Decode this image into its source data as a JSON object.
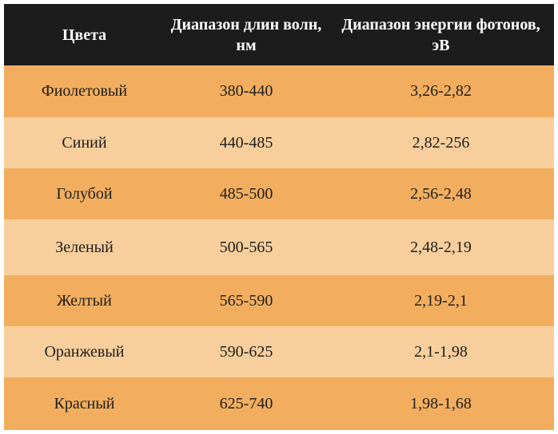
{
  "table": {
    "headers": [
      "Цвета",
      "Диапазон длин волн, нм",
      "Диапазон энергии фотонов, эВ"
    ],
    "rows": [
      [
        "Фиолетовый",
        "380-440",
        "3,26-2,82"
      ],
      [
        "Синий",
        "440-485",
        "2,82-256"
      ],
      [
        "Голубой",
        "485-500",
        "2,56-2,48"
      ],
      [
        "Зеленый",
        "500-565",
        "2,48-2,19"
      ],
      [
        "Желтый",
        "565-590",
        "2,19-2,1"
      ],
      [
        "Оранжевый",
        "590-625",
        "2,1-1,98"
      ],
      [
        "Красный",
        "625-740",
        "1,98-1,68"
      ]
    ],
    "colors": {
      "header_bg": "#1c1c1c",
      "row_dark": "#f2ae5e",
      "row_light": "#f8cf9c"
    }
  }
}
